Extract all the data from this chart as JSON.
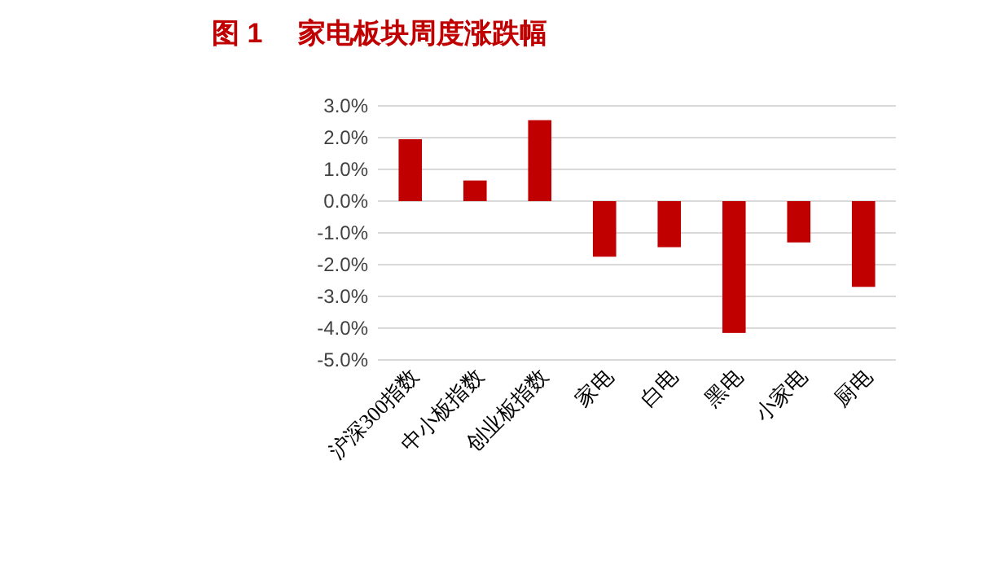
{
  "chart_data": {
    "type": "bar",
    "title": "图 1　 家电板块周度涨跌幅",
    "categories": [
      "沪深300指数",
      "中小板指数",
      "创业板指数",
      "家电",
      "白电",
      "黑电",
      "小家电",
      "厨电"
    ],
    "values": [
      1.95,
      0.65,
      2.55,
      -1.75,
      -1.45,
      -4.15,
      -1.3,
      -2.7
    ],
    "color": "#c00000",
    "ylim": [
      -5,
      3
    ],
    "yticks": [
      {
        "value": 3,
        "label": "3.0%"
      },
      {
        "value": 2,
        "label": "2.0%"
      },
      {
        "value": 1,
        "label": "1.0%"
      },
      {
        "value": 0,
        "label": "0.0%"
      },
      {
        "value": -1,
        "label": "-1.0%"
      },
      {
        "value": -2,
        "label": "-2.0%"
      },
      {
        "value": -3,
        "label": "-3.0%"
      },
      {
        "value": -4,
        "label": "-4.0%"
      },
      {
        "value": -5,
        "label": "-5.0%"
      }
    ],
    "grid": "y"
  }
}
